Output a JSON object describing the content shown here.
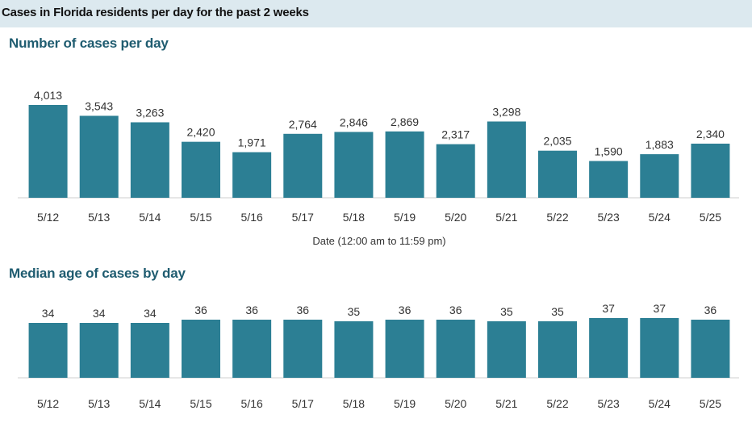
{
  "header": {
    "title": "Cases in Florida residents per day for the past 2 weeks"
  },
  "colors": {
    "bar": "#2c7f94",
    "header_bg": "#dce9ef",
    "section_title": "#1f5c70",
    "axis": "#cfcfcf"
  },
  "chart_data": [
    {
      "type": "bar",
      "title": "Number of cases per day",
      "xlabel": "Date (12:00 am to 11:59 pm)",
      "ylabel": "",
      "categories": [
        "5/12",
        "5/13",
        "5/14",
        "5/15",
        "5/16",
        "5/17",
        "5/18",
        "5/19",
        "5/20",
        "5/21",
        "5/22",
        "5/23",
        "5/24",
        "5/25"
      ],
      "values": [
        4013,
        3543,
        3263,
        2420,
        1971,
        2764,
        2846,
        2869,
        2317,
        3298,
        2035,
        1590,
        1883,
        2340
      ],
      "value_labels": [
        "4,013",
        "3,543",
        "3,263",
        "2,420",
        "1,971",
        "2,764",
        "2,846",
        "2,869",
        "2,317",
        "3,298",
        "2,035",
        "1,590",
        "1,883",
        "2,340"
      ],
      "ylim": [
        0,
        4013
      ],
      "grid": false
    },
    {
      "type": "bar",
      "title": "Median age of cases by day",
      "xlabel": "",
      "ylabel": "",
      "categories": [
        "5/12",
        "5/13",
        "5/14",
        "5/15",
        "5/16",
        "5/17",
        "5/18",
        "5/19",
        "5/20",
        "5/21",
        "5/22",
        "5/23",
        "5/24",
        "5/25"
      ],
      "values": [
        34,
        34,
        34,
        36,
        36,
        36,
        35,
        36,
        36,
        35,
        35,
        37,
        37,
        36
      ],
      "value_labels": [
        "34",
        "34",
        "34",
        "36",
        "36",
        "36",
        "35",
        "36",
        "36",
        "35",
        "35",
        "37",
        "37",
        "36"
      ],
      "ylim": [
        0,
        37
      ],
      "grid": false
    }
  ]
}
